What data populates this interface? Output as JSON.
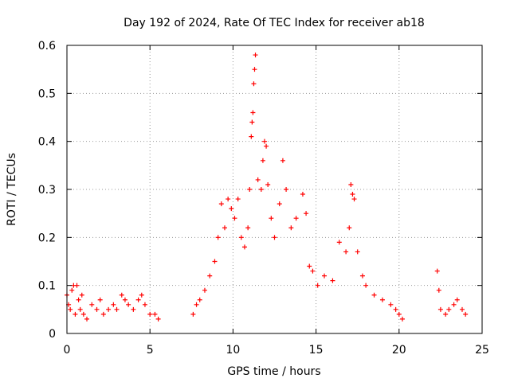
{
  "chart_data": {
    "type": "scatter",
    "title": "Day 192 of 2024, Rate Of TEC Index for receiver ab18",
    "xlabel": "GPS time / hours",
    "ylabel": "ROTI / TECUs",
    "xlim": [
      0,
      25
    ],
    "ylim": [
      0,
      0.6
    ],
    "xticks": [
      "0",
      "5",
      "10",
      "15",
      "20",
      "25"
    ],
    "yticks": [
      "0",
      "0.1",
      "0.2",
      "0.3",
      "0.4",
      "0.5",
      "0.6"
    ],
    "grid": true,
    "marker": "+",
    "color": "#ff0000",
    "series": [
      {
        "points": [
          [
            0.0,
            0.08
          ],
          [
            0.1,
            0.06
          ],
          [
            0.2,
            0.05
          ],
          [
            0.3,
            0.09
          ],
          [
            0.4,
            0.1
          ],
          [
            0.5,
            0.04
          ],
          [
            0.6,
            0.1
          ],
          [
            0.7,
            0.07
          ],
          [
            0.8,
            0.05
          ],
          [
            0.9,
            0.08
          ],
          [
            1.0,
            0.04
          ],
          [
            1.2,
            0.03
          ],
          [
            1.5,
            0.06
          ],
          [
            1.8,
            0.05
          ],
          [
            2.0,
            0.07
          ],
          [
            2.2,
            0.04
          ],
          [
            2.5,
            0.05
          ],
          [
            2.8,
            0.06
          ],
          [
            3.0,
            0.05
          ],
          [
            3.3,
            0.08
          ],
          [
            3.5,
            0.07
          ],
          [
            3.7,
            0.06
          ],
          [
            4.0,
            0.05
          ],
          [
            4.3,
            0.07
          ],
          [
            4.5,
            0.08
          ],
          [
            4.7,
            0.06
          ],
          [
            5.0,
            0.04
          ],
          [
            5.3,
            0.04
          ],
          [
            5.5,
            0.03
          ],
          [
            7.6,
            0.04
          ],
          [
            7.8,
            0.06
          ],
          [
            8.0,
            0.07
          ],
          [
            8.3,
            0.09
          ],
          [
            8.6,
            0.12
          ],
          [
            8.9,
            0.15
          ],
          [
            9.1,
            0.2
          ],
          [
            9.3,
            0.27
          ],
          [
            9.5,
            0.22
          ],
          [
            9.7,
            0.28
          ],
          [
            9.9,
            0.26
          ],
          [
            10.1,
            0.24
          ],
          [
            10.3,
            0.28
          ],
          [
            10.5,
            0.2
          ],
          [
            10.7,
            0.18
          ],
          [
            10.9,
            0.22
          ],
          [
            11.0,
            0.3
          ],
          [
            11.1,
            0.41
          ],
          [
            11.15,
            0.44
          ],
          [
            11.2,
            0.46
          ],
          [
            11.25,
            0.52
          ],
          [
            11.3,
            0.55
          ],
          [
            11.35,
            0.58
          ],
          [
            11.5,
            0.32
          ],
          [
            11.7,
            0.3
          ],
          [
            11.8,
            0.36
          ],
          [
            11.9,
            0.4
          ],
          [
            12.0,
            0.39
          ],
          [
            12.1,
            0.31
          ],
          [
            12.3,
            0.24
          ],
          [
            12.5,
            0.2
          ],
          [
            12.8,
            0.27
          ],
          [
            13.0,
            0.36
          ],
          [
            13.2,
            0.3
          ],
          [
            13.5,
            0.22
          ],
          [
            13.8,
            0.24
          ],
          [
            14.2,
            0.29
          ],
          [
            14.4,
            0.25
          ],
          [
            14.6,
            0.14
          ],
          [
            14.8,
            0.13
          ],
          [
            15.1,
            0.1
          ],
          [
            15.5,
            0.12
          ],
          [
            16.0,
            0.11
          ],
          [
            16.4,
            0.19
          ],
          [
            16.8,
            0.17
          ],
          [
            17.0,
            0.22
          ],
          [
            17.1,
            0.31
          ],
          [
            17.2,
            0.29
          ],
          [
            17.3,
            0.28
          ],
          [
            17.5,
            0.17
          ],
          [
            17.8,
            0.12
          ],
          [
            18.0,
            0.1
          ],
          [
            18.5,
            0.08
          ],
          [
            19.0,
            0.07
          ],
          [
            19.5,
            0.06
          ],
          [
            19.8,
            0.05
          ],
          [
            20.0,
            0.04
          ],
          [
            20.2,
            0.03
          ],
          [
            22.3,
            0.13
          ],
          [
            22.4,
            0.09
          ],
          [
            22.5,
            0.05
          ],
          [
            22.8,
            0.04
          ],
          [
            23.0,
            0.05
          ],
          [
            23.3,
            0.06
          ],
          [
            23.5,
            0.07
          ],
          [
            23.8,
            0.05
          ],
          [
            24.0,
            0.04
          ]
        ]
      }
    ]
  }
}
